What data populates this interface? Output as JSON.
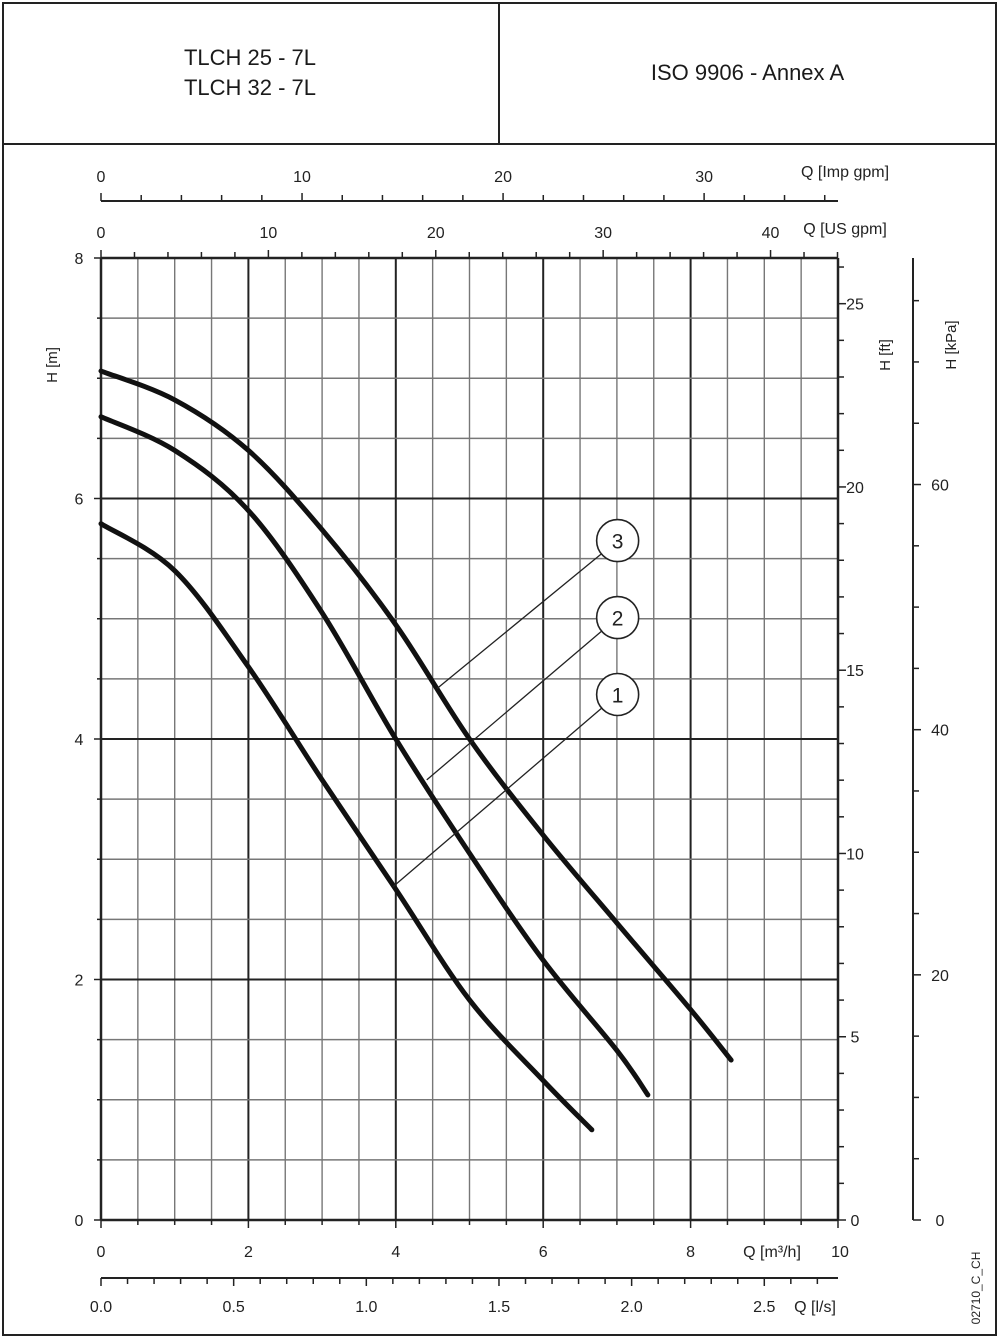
{
  "header": {
    "models": [
      "TLCH 25 - 7L",
      "TLCH 32 - 7L"
    ],
    "standard": "ISO 9906 - Annex A"
  },
  "footer_code": "02710_C_CH",
  "chart_data": {
    "type": "line",
    "title": "",
    "xlabel": "Q [m³/h]",
    "ylabel": "H [m]",
    "xlim": [
      0,
      10
    ],
    "ylim": [
      0,
      8
    ],
    "grid": true,
    "x_ticks": [
      "0",
      "2",
      "4",
      "6",
      "8",
      "10"
    ],
    "y_ticks": [
      "0",
      "2",
      "4",
      "6",
      "8"
    ],
    "secondary_axes": {
      "imp_gpm": {
        "label": "Q [Imp gpm]",
        "ticks": [
          "0",
          "10",
          "20",
          "30"
        ],
        "per_m3h": 3.666
      },
      "us_gpm": {
        "label": "Q [US gpm]",
        "ticks": [
          "0",
          "10",
          "20",
          "30",
          "40"
        ],
        "per_m3h": 4.403
      },
      "ls": {
        "label": "Q [l/s]",
        "ticks": [
          "0.0",
          "0.5",
          "1.0",
          "1.5",
          "2.0",
          "2.5"
        ],
        "per_m3h": 0.27778
      },
      "ft": {
        "label": "H [ft]",
        "ticks": [
          "0",
          "5",
          "10",
          "15",
          "20",
          "25"
        ],
        "per_m": 3.2808
      },
      "kpa": {
        "label": "H [kPa]",
        "ticks": [
          "0",
          "20",
          "40",
          "60"
        ],
        "per_m": 9.81
      }
    },
    "series": [
      {
        "name": "1",
        "x": [
          0,
          1,
          2,
          3,
          4,
          5,
          6,
          6.66
        ],
        "y": [
          5.79,
          5.4,
          4.6,
          3.66,
          2.75,
          1.83,
          1.16,
          0.75
        ]
      },
      {
        "name": "2",
        "x": [
          0,
          1,
          2,
          3,
          4,
          5,
          6,
          7,
          7.42
        ],
        "y": [
          6.68,
          6.4,
          5.9,
          5.05,
          4.0,
          3.05,
          2.16,
          1.41,
          1.04
        ]
      },
      {
        "name": "3",
        "x": [
          0,
          1,
          2,
          3,
          4,
          5,
          6,
          7,
          8,
          8.55
        ],
        "y": [
          7.06,
          6.82,
          6.4,
          5.74,
          4.95,
          4.0,
          3.2,
          2.47,
          1.75,
          1.33
        ]
      }
    ],
    "annotations": [
      {
        "label": "1",
        "at": [
          7.01,
          4.37
        ],
        "points_to": [
          3.96,
          2.77
        ]
      },
      {
        "label": "2",
        "at": [
          7.01,
          5.01
        ],
        "points_to": [
          4.42,
          3.66
        ]
      },
      {
        "label": "3",
        "at": [
          7.01,
          5.65
        ],
        "points_to": [
          4.56,
          4.42
        ]
      }
    ]
  }
}
